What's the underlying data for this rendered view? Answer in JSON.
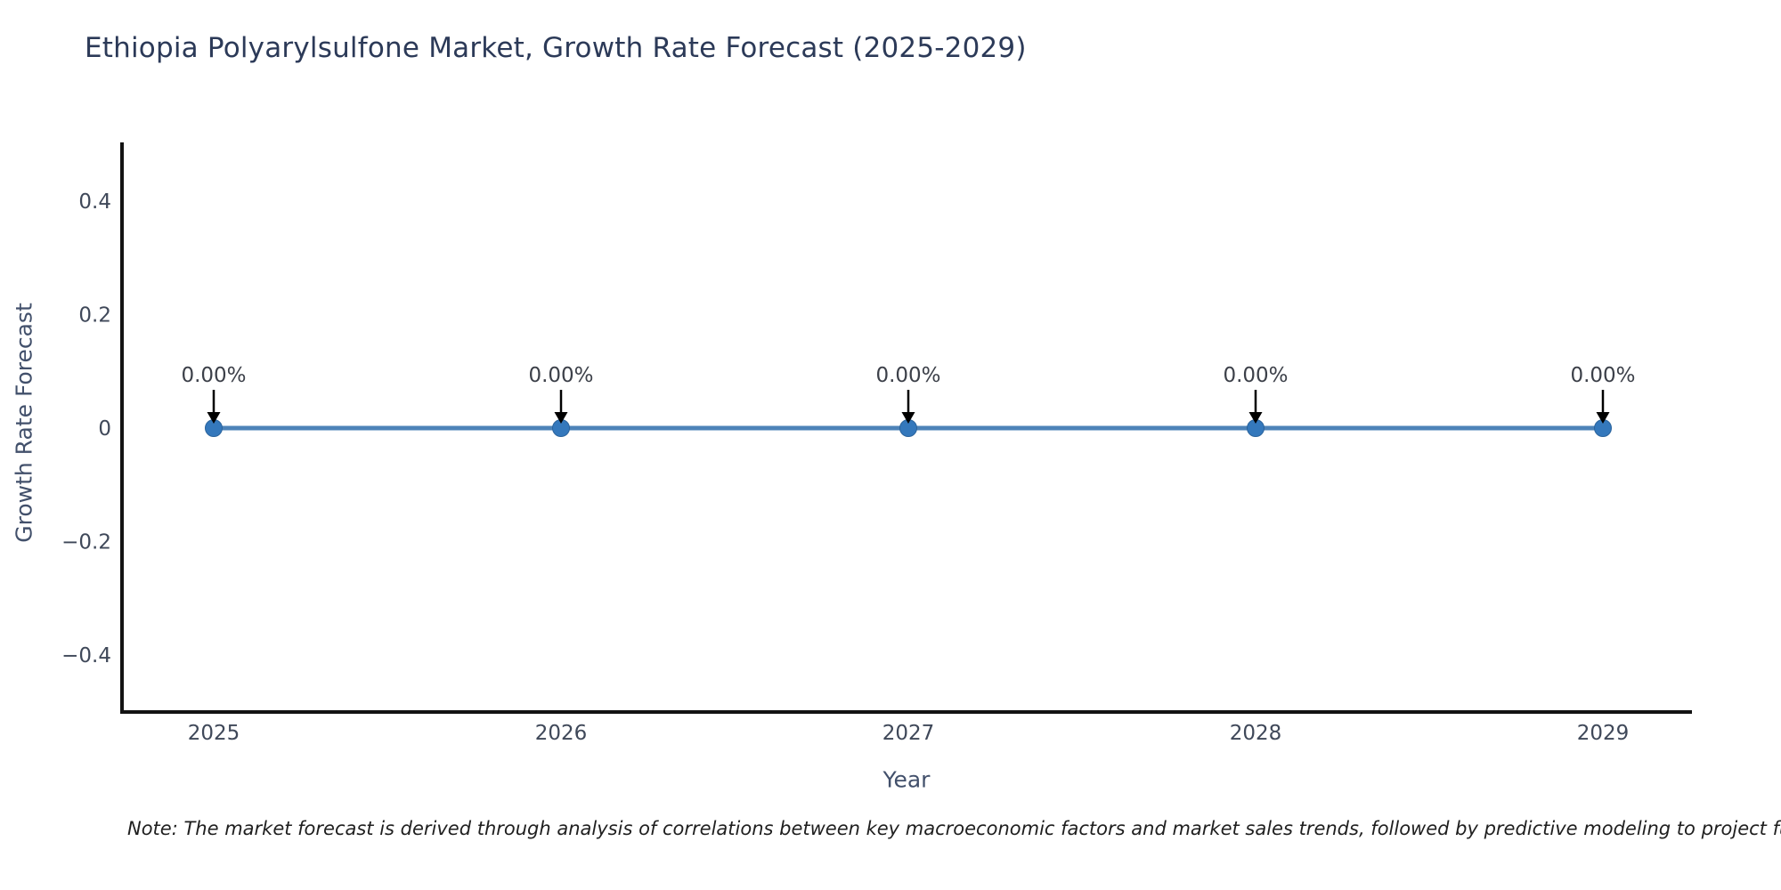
{
  "page": {
    "background": "#ffffff"
  },
  "chart": {
    "title": "Ethiopia Polyarylsulfone Market, Growth Rate Forecast (2025-2029)",
    "xlabel": "Year",
    "ylabel": "Growth Rate Forecast",
    "note": "Note: The market forecast is derived through analysis of correlations between key macroeconomic factors and market sales trends, followed by predictive modeling to project future sa",
    "colors": {
      "title": "#2c3a58",
      "axis_title": "#42506b",
      "tick_label": "#3f4859",
      "data_label": "#3c4049",
      "note_text": "#1f1f1f",
      "line": "#4d83b8",
      "marker_fill": "#3478bc",
      "marker_edge": "#2a639c",
      "arrow": "#000000",
      "spine": "#131313"
    }
  },
  "chart_data": {
    "type": "line",
    "title": "Ethiopia Polyarylsulfone Market, Growth Rate Forecast (2025-2029)",
    "xlabel": "Year",
    "ylabel": "Growth Rate Forecast",
    "x": [
      2025,
      2026,
      2027,
      2028,
      2029
    ],
    "y": [
      0,
      0,
      0,
      0,
      0
    ],
    "point_labels": [
      "0.00%",
      "0.00%",
      "0.00%",
      "0.00%",
      "0.00%"
    ],
    "x_tick_labels": [
      "2025",
      "2026",
      "2027",
      "2028",
      "2029"
    ],
    "y_ticks": [
      0.4,
      0.2,
      0,
      -0.2,
      -0.4
    ],
    "y_tick_labels": [
      "0.4",
      "0.2",
      "0",
      "−0.2",
      "−0.4"
    ],
    "ylim": [
      -0.5,
      0.5
    ],
    "grid": false,
    "legend": null,
    "annotation_style": "down-arrow-to-point"
  }
}
